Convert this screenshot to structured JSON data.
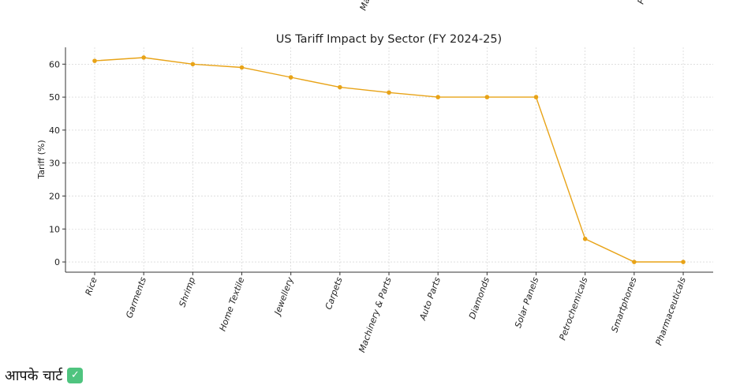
{
  "top_fragments": [
    "Ma",
    "P"
  ],
  "caption": {
    "text": "आपके चार्ट",
    "badge_icon": "check-icon",
    "badge_color": "#4fc47f"
  },
  "chart_data": {
    "type": "line",
    "title": "US Tariff Impact by Sector (FY 2024-25)",
    "xlabel": "",
    "ylabel": "Tariff (%)",
    "categories": [
      "Rice",
      "Garments",
      "Shrimp",
      "Home Textile",
      "Jewellery",
      "Carpets",
      "Machinery & Parts",
      "Auto Parts",
      "Diamonds",
      "Solar Panels",
      "Petrochemicals",
      "Smartphones",
      "Pharmaceuticals"
    ],
    "series": [
      {
        "values": [
          61,
          62,
          60,
          59,
          56,
          53,
          51.4,
          50,
          50,
          50,
          7,
          0,
          0
        ],
        "color": "#e8a317"
      }
    ],
    "yticks": [
      0,
      10,
      20,
      30,
      40,
      50,
      60
    ],
    "ylim": [
      -3.1,
      65.1
    ],
    "grid": true,
    "legend": "none"
  }
}
